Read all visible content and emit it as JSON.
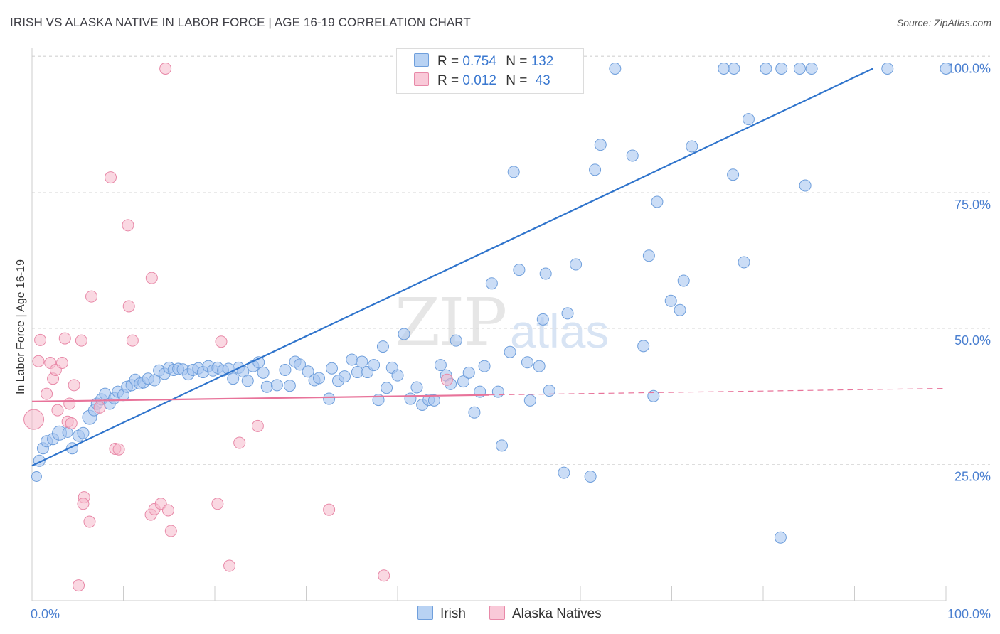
{
  "header": {
    "title": "IRISH VS ALASKA NATIVE IN LABOR FORCE | AGE 16-19 CORRELATION CHART",
    "source": "Source: ZipAtlas.com"
  },
  "watermark": {
    "zip": "ZIP",
    "atlas": "atlas"
  },
  "legend": {
    "rows": [
      {
        "r_label": "R =",
        "r_value": "0.754",
        "n_label": "N =",
        "n_value": "132"
      },
      {
        "r_label": "R =",
        "r_value": "0.012",
        "n_label": "N =",
        "n_value": "43"
      }
    ]
  },
  "bottom_legend": {
    "irish": "Irish",
    "alaska": "Alaska Natives"
  },
  "colors": {
    "irish_fill": "#a9c7f0",
    "irish_stroke": "#6f9fdc",
    "irish_line": "#2f74cc",
    "alaska_fill": "#f5b8cb",
    "alaska_stroke": "#e889a8",
    "alaska_line": "#e8739a",
    "tick_text": "#4a7fd0",
    "grid": "#dddddd"
  },
  "chart_data": {
    "type": "scatter",
    "title": "IRISH VS ALASKA NATIVE IN LABOR FORCE | AGE 16-19 CORRELATION CHART",
    "xlabel": "",
    "ylabel": "In Labor Force | Age 16-19",
    "xlim": [
      0,
      100
    ],
    "ylim": [
      0,
      102
    ],
    "x_tick_labels": [
      "0.0%",
      "100.0%"
    ],
    "y_ticks": [
      25,
      50,
      75,
      100
    ],
    "y_tick_labels": [
      "25.0%",
      "50.0%",
      "75.0%",
      "100.0%"
    ],
    "grid": true,
    "series": [
      {
        "name": "Irish",
        "R": 0.754,
        "N": 132,
        "trend": {
          "x": [
            0,
            92
          ],
          "y": [
            27,
            100
          ]
        },
        "points": [
          [
            0.5,
            25,
            7
          ],
          [
            0.8,
            27.9,
            8
          ],
          [
            1.2,
            30.2,
            8
          ],
          [
            1.6,
            31.5,
            8
          ],
          [
            2.3,
            31.9,
            8
          ],
          [
            3,
            33,
            10
          ],
          [
            3.9,
            33.1,
            7
          ],
          [
            4.4,
            30.2,
            8
          ],
          [
            5.1,
            32.5,
            8
          ],
          [
            5.6,
            33,
            8
          ],
          [
            6.3,
            35.9,
            10
          ],
          [
            6.8,
            37.2,
            8
          ],
          [
            7.1,
            38.4,
            8
          ],
          [
            7.6,
            39.2,
            8
          ],
          [
            8,
            40.2,
            8
          ],
          [
            8.5,
            38.4,
            8
          ],
          [
            9,
            39.4,
            8
          ],
          [
            9.4,
            40.6,
            8
          ],
          [
            10,
            40,
            8
          ],
          [
            10.4,
            41.5,
            8
          ],
          [
            10.9,
            41.8,
            8
          ],
          [
            11.3,
            42.8,
            8
          ],
          [
            11.8,
            42.1,
            8
          ],
          [
            12.2,
            42.3,
            8
          ],
          [
            12.7,
            43,
            8
          ],
          [
            13.4,
            42.7,
            8
          ],
          [
            13.9,
            44.5,
            8
          ],
          [
            14.5,
            43.9,
            8
          ],
          [
            15,
            45,
            8
          ],
          [
            15.5,
            44.6,
            8
          ],
          [
            16,
            44.8,
            8
          ],
          [
            16.5,
            44.7,
            8
          ],
          [
            17.1,
            43.8,
            8
          ],
          [
            17.6,
            44.6,
            8
          ],
          [
            18.2,
            44.9,
            8
          ],
          [
            18.7,
            44.2,
            8
          ],
          [
            19.3,
            45.3,
            8
          ],
          [
            19.8,
            44.5,
            8
          ],
          [
            20.3,
            45,
            8
          ],
          [
            20.9,
            44.5,
            8
          ],
          [
            21.5,
            44.8,
            8
          ],
          [
            22,
            43,
            8
          ],
          [
            22.6,
            45,
            8
          ],
          [
            23.1,
            44.3,
            8
          ],
          [
            23.6,
            42.6,
            8
          ],
          [
            24.2,
            45.3,
            8
          ],
          [
            24.8,
            46,
            8
          ],
          [
            25.3,
            44.1,
            8
          ],
          [
            25.7,
            41.5,
            8
          ],
          [
            26.8,
            41.8,
            8
          ],
          [
            27.7,
            44.6,
            8
          ],
          [
            28.2,
            41.7,
            8
          ],
          [
            28.8,
            46.1,
            8
          ],
          [
            29.3,
            45.6,
            8
          ],
          [
            30.2,
            44.3,
            8
          ],
          [
            30.9,
            42.7,
            8
          ],
          [
            31.4,
            43.1,
            8
          ],
          [
            32.5,
            39.3,
            8
          ],
          [
            32.8,
            44.9,
            8
          ],
          [
            33.5,
            42.6,
            8
          ],
          [
            34.2,
            43.4,
            8
          ],
          [
            35,
            46.5,
            8
          ],
          [
            35.6,
            44.2,
            8
          ],
          [
            36.1,
            46.1,
            8
          ],
          [
            36.7,
            44.2,
            8
          ],
          [
            37.4,
            45.5,
            8
          ],
          [
            37.9,
            39.1,
            8
          ],
          [
            38.4,
            48.9,
            8
          ],
          [
            38.8,
            41.3,
            8
          ],
          [
            39.4,
            45,
            8
          ],
          [
            40,
            43.6,
            8
          ],
          [
            40.7,
            51.2,
            8
          ],
          [
            41.4,
            39.3,
            8
          ],
          [
            42.1,
            41.4,
            8
          ],
          [
            42.7,
            38.2,
            8
          ],
          [
            43.4,
            39.1,
            8
          ],
          [
            44,
            39,
            8
          ],
          [
            44.7,
            45.5,
            8
          ],
          [
            45.3,
            43.6,
            8
          ],
          [
            45.8,
            42,
            8
          ],
          [
            46.4,
            50,
            8
          ],
          [
            47.2,
            42.5,
            8
          ],
          [
            47.8,
            44.1,
            8
          ],
          [
            48.4,
            36.8,
            8
          ],
          [
            49,
            40.6,
            8
          ],
          [
            49.5,
            45.3,
            8
          ],
          [
            50.3,
            60.5,
            8
          ],
          [
            51,
            40.6,
            8
          ],
          [
            51.4,
            30.7,
            8
          ],
          [
            52.3,
            47.9,
            8
          ],
          [
            52.7,
            81,
            8
          ],
          [
            53.3,
            63,
            8
          ],
          [
            54.2,
            46,
            8
          ],
          [
            54.5,
            39,
            8
          ],
          [
            55.5,
            45.3,
            8
          ],
          [
            55.9,
            53.9,
            8
          ],
          [
            56.2,
            62.3,
            8
          ],
          [
            56.6,
            40.8,
            8
          ],
          [
            58.2,
            25.7,
            8
          ],
          [
            58.6,
            55,
            8
          ],
          [
            59.5,
            64,
            8
          ],
          [
            61.1,
            25,
            8
          ],
          [
            61.6,
            81.4,
            8
          ],
          [
            62.2,
            86,
            8
          ],
          [
            65.7,
            84,
            8
          ],
          [
            66.9,
            49,
            8
          ],
          [
            67.5,
            65.6,
            8
          ],
          [
            68,
            39.8,
            8
          ],
          [
            68.4,
            75.5,
            8
          ],
          [
            69.9,
            57.3,
            8
          ],
          [
            70.9,
            55.6,
            8
          ],
          [
            71.3,
            61,
            8
          ],
          [
            72.2,
            85.7,
            8
          ],
          [
            76.7,
            80.5,
            8
          ],
          [
            77.9,
            64.4,
            8
          ],
          [
            78.4,
            90.7,
            8
          ],
          [
            81.9,
            13.8,
            8
          ],
          [
            84.6,
            78.5,
            8
          ],
          [
            63.8,
            100,
            8
          ],
          [
            75.7,
            100,
            8
          ],
          [
            76.8,
            100,
            8
          ],
          [
            80.3,
            100,
            8
          ],
          [
            82,
            100,
            8
          ],
          [
            84,
            100,
            8
          ],
          [
            85.3,
            100,
            8
          ],
          [
            93.6,
            100,
            8
          ],
          [
            100,
            100,
            8
          ]
        ]
      },
      {
        "name": "Alaska Natives",
        "R": 0.012,
        "N": 43,
        "trend": {
          "x": [
            0,
            50
          ],
          "y": [
            38.8,
            40
          ]
        },
        "trend_extension": {
          "x": [
            50,
            100
          ],
          "y": [
            40,
            41.2
          ]
        },
        "points": [
          [
            0.2,
            35.5,
            14
          ],
          [
            0.7,
            46.2,
            8
          ],
          [
            0.9,
            50.1,
            8
          ],
          [
            1.6,
            40.2,
            8
          ],
          [
            2,
            45.9,
            8
          ],
          [
            2.3,
            43,
            8
          ],
          [
            2.6,
            44.6,
            8
          ],
          [
            2.8,
            37.2,
            8
          ],
          [
            3.3,
            45.9,
            8
          ],
          [
            3.9,
            35.1,
            8
          ],
          [
            3.6,
            50.4,
            8
          ],
          [
            4.1,
            38.4,
            8
          ],
          [
            4.3,
            34.8,
            8
          ],
          [
            4.6,
            41.8,
            8
          ],
          [
            5.1,
            5,
            8
          ],
          [
            5.4,
            50,
            8
          ],
          [
            5.7,
            21.2,
            8
          ],
          [
            5.6,
            20,
            8
          ],
          [
            6.3,
            16.7,
            8
          ],
          [
            6.5,
            58.1,
            8
          ],
          [
            7.4,
            37.7,
            8
          ],
          [
            8.6,
            80,
            8
          ],
          [
            9.1,
            30.1,
            8
          ],
          [
            9.5,
            30,
            8
          ],
          [
            10.6,
            56.3,
            8
          ],
          [
            10.5,
            71.2,
            8
          ],
          [
            11,
            50,
            8
          ],
          [
            13.1,
            61.5,
            8
          ],
          [
            13,
            18,
            8
          ],
          [
            13.4,
            19,
            8
          ],
          [
            14.1,
            20,
            8
          ],
          [
            14.6,
            100,
            8
          ],
          [
            14.9,
            18.8,
            8
          ],
          [
            15.2,
            15,
            8
          ],
          [
            20.3,
            20,
            8
          ],
          [
            20.7,
            49.8,
            8
          ],
          [
            21.6,
            8.6,
            8
          ],
          [
            22.7,
            31.2,
            8
          ],
          [
            24.7,
            34.3,
            8
          ],
          [
            32.5,
            18.9,
            8
          ],
          [
            38.5,
            6.8,
            8
          ],
          [
            45.4,
            42.8,
            8
          ]
        ]
      }
    ]
  }
}
